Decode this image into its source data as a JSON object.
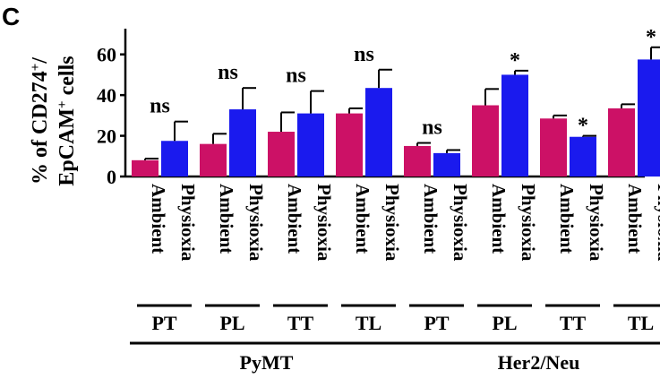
{
  "chart_data": {
    "type": "bar",
    "panel_label": "C",
    "ylabel_line1": "% of CD274",
    "ylabel_line1_sup": "+",
    "ylabel_line1_tail": "/",
    "ylabel_line2": "EpCAM",
    "ylabel_line2_sup": "+",
    "ylabel_line2_tail": " cells",
    "ylim": [
      0,
      70
    ],
    "yticks": [
      0,
      20,
      40,
      60
    ],
    "conditions": [
      "Ambient",
      "Physioxia"
    ],
    "colors": {
      "Ambient": "#cc1166",
      "Physioxia": "#1a1aee"
    },
    "groups": [
      {
        "model": "PyMT",
        "tissue": "PT",
        "ambient": 8,
        "ambient_err": 0.8,
        "physioxia": 17.5,
        "physioxia_err": 9.5,
        "sig": "ns"
      },
      {
        "model": "PyMT",
        "tissue": "PL",
        "ambient": 16,
        "ambient_err": 5,
        "physioxia": 33,
        "physioxia_err": 10.5,
        "sig": "ns"
      },
      {
        "model": "PyMT",
        "tissue": "TT",
        "ambient": 22,
        "ambient_err": 9.5,
        "physioxia": 31,
        "physioxia_err": 11,
        "sig": "ns"
      },
      {
        "model": "PyMT",
        "tissue": "TL",
        "ambient": 31,
        "ambient_err": 2.5,
        "physioxia": 43.5,
        "physioxia_err": 9,
        "sig": "ns"
      },
      {
        "model": "Her2/Neu",
        "tissue": "PT",
        "ambient": 15,
        "ambient_err": 1.5,
        "physioxia": 11.5,
        "physioxia_err": 1.5,
        "sig": "ns"
      },
      {
        "model": "Her2/Neu",
        "tissue": "PL",
        "ambient": 35,
        "ambient_err": 8,
        "physioxia": 50,
        "physioxia_err": 2,
        "sig": "*"
      },
      {
        "model": "Her2/Neu",
        "tissue": "TT",
        "ambient": 28.5,
        "ambient_err": 1.5,
        "physioxia": 19.5,
        "physioxia_err": 0.5,
        "sig": "*"
      },
      {
        "model": "Her2/Neu",
        "tissue": "TL",
        "ambient": 33.5,
        "ambient_err": 2,
        "physioxia": 57.5,
        "physioxia_err": 6,
        "sig": "*"
      }
    ],
    "models": [
      "PyMT",
      "Her2/Neu"
    ],
    "grid": false,
    "legend": "none"
  }
}
